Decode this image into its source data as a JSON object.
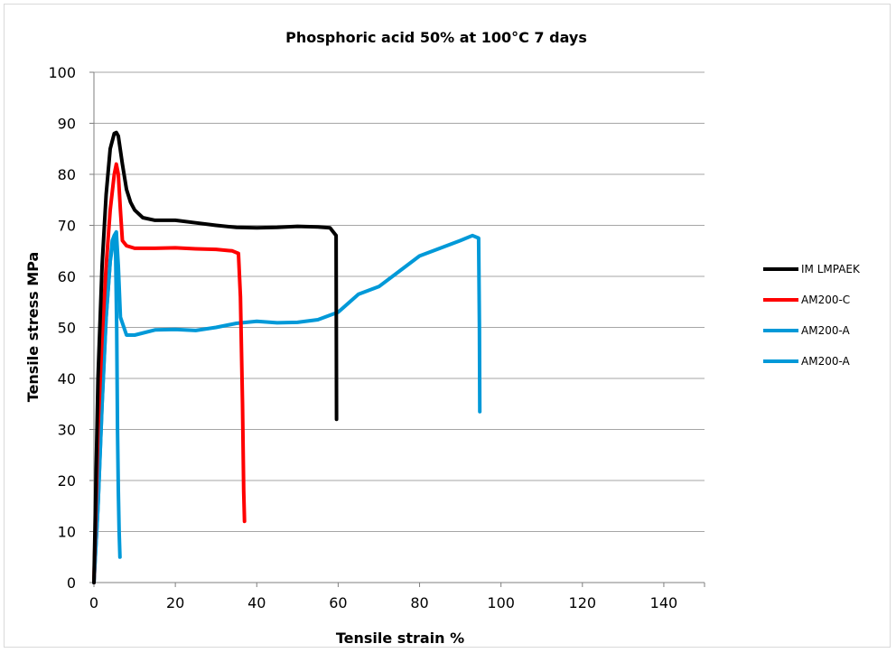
{
  "chart_data": {
    "type": "line",
    "title": "Phosphoric acid 50% at 100°C 7 days",
    "xlabel": "Tensile strain %",
    "ylabel": "Tensile stress MPa",
    "xlim": [
      0,
      150
    ],
    "ylim": [
      0,
      100
    ],
    "x_ticks": [
      0,
      20,
      40,
      60,
      80,
      100,
      120,
      140
    ],
    "y_ticks": [
      0,
      10,
      20,
      30,
      40,
      50,
      60,
      70,
      80,
      90,
      100
    ],
    "grid": "horizontal",
    "legend_position": "right",
    "series": [
      {
        "name": "IM LMPAEK",
        "color": "#000000",
        "x": [
          0,
          1,
          2,
          3,
          4,
          5,
          5.5,
          6,
          7,
          8,
          9,
          10,
          12,
          15,
          20,
          25,
          30,
          35,
          40,
          45,
          50,
          55,
          58,
          59.5,
          59.6
        ],
        "y": [
          0,
          40,
          62,
          76,
          85,
          88,
          88.2,
          87.5,
          82,
          77,
          74.5,
          73,
          71.5,
          71,
          71,
          70.5,
          70,
          69.6,
          69.5,
          69.6,
          69.8,
          69.7,
          69.5,
          68,
          32
        ]
      },
      {
        "name": "AM200-C",
        "color": "#ff0000",
        "x": [
          0,
          1,
          2,
          3,
          4,
          5,
          5.5,
          6,
          6.5,
          7,
          8,
          10,
          15,
          20,
          25,
          30,
          34,
          35.5,
          36,
          36.5,
          36.8,
          37
        ],
        "y": [
          0,
          30,
          48,
          62,
          73,
          80,
          82,
          80,
          73,
          67,
          66,
          65.5,
          65.5,
          65.6,
          65.4,
          65.3,
          65.0,
          64.5,
          56,
          35,
          18,
          12
        ]
      },
      {
        "name": "AM200-A",
        "color": "#0099d8",
        "x": [
          0,
          1,
          2,
          3,
          4,
          5,
          5.5,
          6,
          6.5,
          8,
          10,
          15,
          20,
          25,
          30,
          35,
          40,
          45,
          50,
          55,
          60,
          65,
          70,
          75,
          80,
          85,
          90,
          93,
          94.5,
          94.7,
          94.8
        ],
        "y": [
          0,
          15,
          35,
          52,
          63,
          68,
          68.7,
          62,
          52,
          48.5,
          48.5,
          49.5,
          49.6,
          49.4,
          50,
          50.8,
          51.2,
          50.9,
          51,
          51.5,
          53,
          56.5,
          58,
          61,
          64,
          65.5,
          67,
          68,
          67.5,
          50,
          33.5
        ]
      },
      {
        "name": "AM200-A",
        "color": "#0099d8",
        "x": [
          0,
          1,
          2,
          3,
          4,
          4.5,
          5,
          5.3,
          5.6,
          5.8,
          6,
          6.2,
          6.4
        ],
        "y": [
          0,
          15,
          35,
          52,
          63,
          67,
          68,
          66,
          50,
          30,
          18,
          10,
          5
        ]
      }
    ]
  }
}
